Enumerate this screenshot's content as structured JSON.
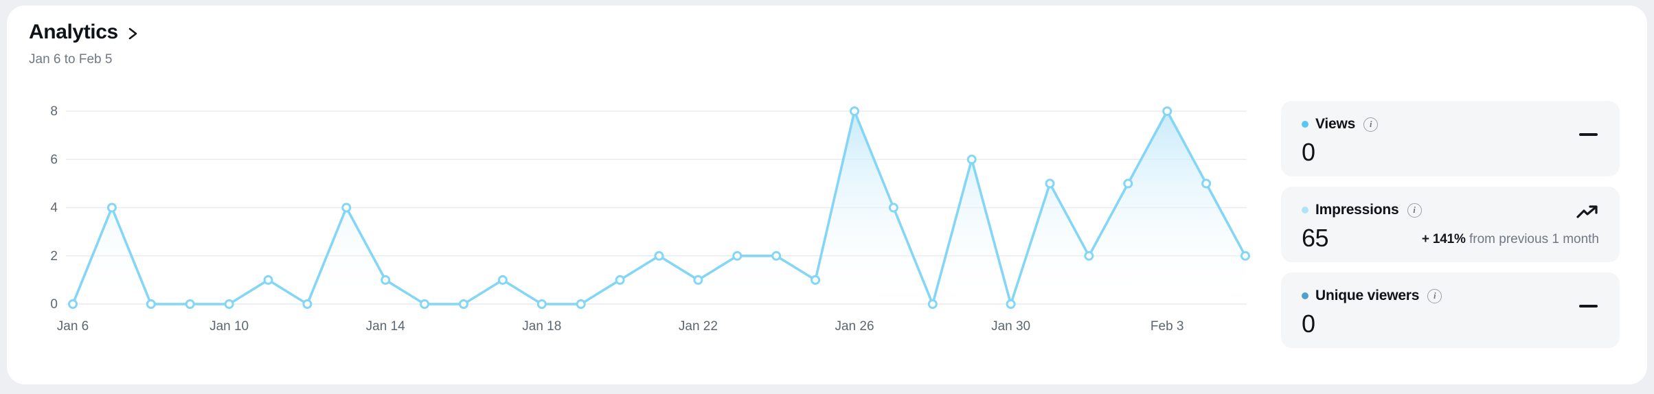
{
  "header": {
    "title": "Analytics",
    "date_range": "Jan 6 to Feb 5"
  },
  "chart_data": {
    "type": "area",
    "title": "",
    "xlabel": "",
    "ylabel": "",
    "x": [
      "Jan 6",
      "Jan 7",
      "Jan 8",
      "Jan 9",
      "Jan 10",
      "Jan 11",
      "Jan 12",
      "Jan 13",
      "Jan 14",
      "Jan 15",
      "Jan 16",
      "Jan 17",
      "Jan 18",
      "Jan 19",
      "Jan 20",
      "Jan 21",
      "Jan 22",
      "Jan 23",
      "Jan 24",
      "Jan 25",
      "Jan 26",
      "Jan 27",
      "Jan 28",
      "Jan 29",
      "Jan 30",
      "Jan 31",
      "Feb 1",
      "Feb 2",
      "Feb 3",
      "Feb 4",
      "Feb 5"
    ],
    "series": [
      {
        "name": "Impressions",
        "values": [
          0,
          4,
          0,
          0,
          0,
          1,
          0,
          4,
          1,
          0,
          0,
          1,
          0,
          0,
          1,
          2,
          1,
          2,
          2,
          1,
          8,
          4,
          0,
          6,
          0,
          5,
          2,
          5,
          8,
          5,
          2
        ]
      }
    ],
    "ylim": [
      0,
      8
    ],
    "y_ticks": [
      0,
      2,
      4,
      6,
      8
    ],
    "x_tick_every": 4,
    "grid": "horizontal",
    "legend": "none",
    "line_color": "#84d6f6",
    "marker_style": "open-circle",
    "fill_top_color": "#c6eafa",
    "grid_color": "#e9ebee",
    "tick_color": "#5c6670"
  },
  "stats": {
    "cards": [
      {
        "label": "Views",
        "value": "0",
        "dot_color": "#57c8f3",
        "info_icon": "info-icon",
        "trend": "flat"
      },
      {
        "label": "Impressions",
        "value": "65",
        "dot_color": "#b0e3f8",
        "info_icon": "info-icon",
        "trend": "up",
        "trend_value": "+ 141%",
        "trend_note": "from previous 1 month"
      },
      {
        "label": "Unique viewers",
        "value": "0",
        "dot_color": "#4fa0ca",
        "info_icon": "info-icon",
        "trend": "flat"
      }
    ]
  }
}
